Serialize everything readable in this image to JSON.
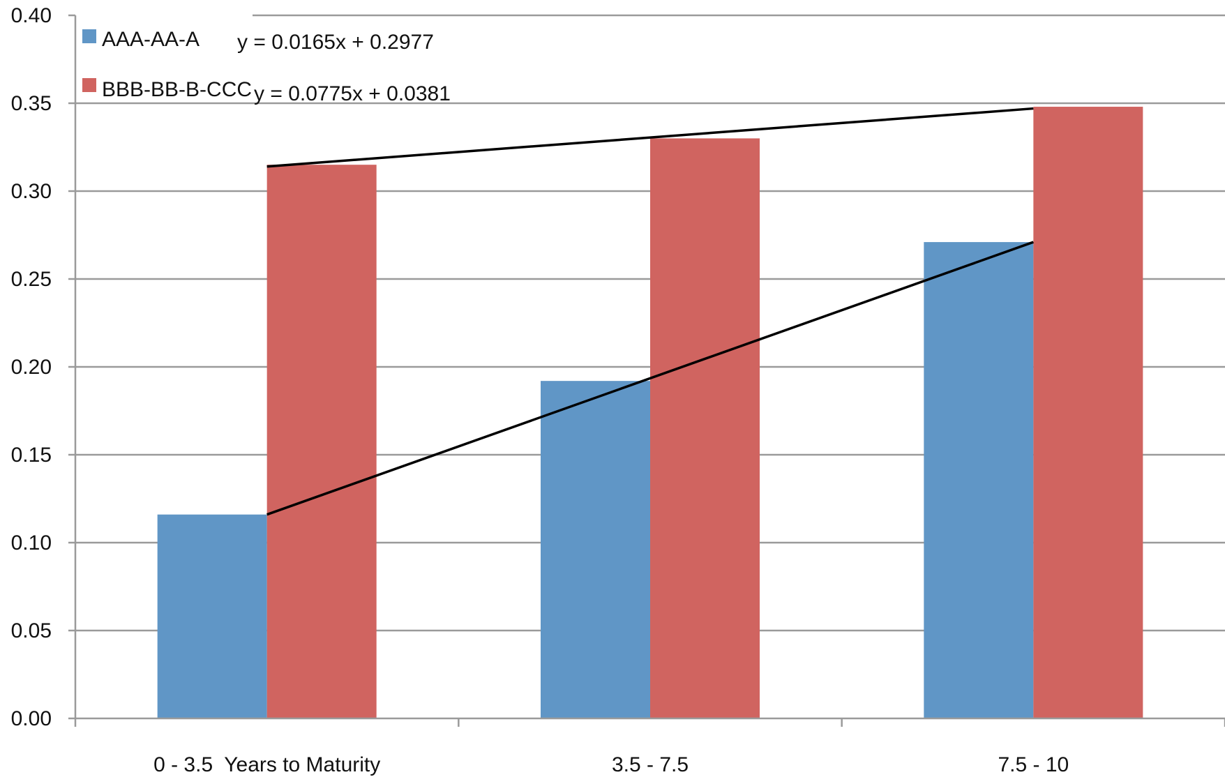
{
  "chart_data": {
    "type": "bar",
    "categories": [
      "0 - 3.5  Years to Maturity",
      "3.5 - 7.5",
      "7.5 - 10"
    ],
    "series": [
      {
        "name": "AAA-AA-A",
        "values": [
          0.116,
          0.192,
          0.271
        ],
        "color": "#6096C6"
      },
      {
        "name": "BBB-BB-B-CCC",
        "values": [
          0.315,
          0.33,
          0.348
        ],
        "color": "#D06460"
      }
    ],
    "trendlines": [
      {
        "series": "AAA-AA-A",
        "label": "y = 0.0775x + 0.0381",
        "start": 0.116,
        "end": 0.271
      },
      {
        "series": "BBB-BB-B-CCC",
        "label": "y = 0.0165x + 0.2977",
        "start": 0.314,
        "end": 0.347
      }
    ],
    "ylim": [
      0,
      0.4
    ],
    "yticks": [
      "0.00",
      "0.05",
      "0.10",
      "0.15",
      "0.20",
      "0.25",
      "0.30",
      "0.35",
      "0.40"
    ],
    "grid": true,
    "legend_position": "top-left",
    "title": "",
    "xlabel": "",
    "ylabel": ""
  }
}
